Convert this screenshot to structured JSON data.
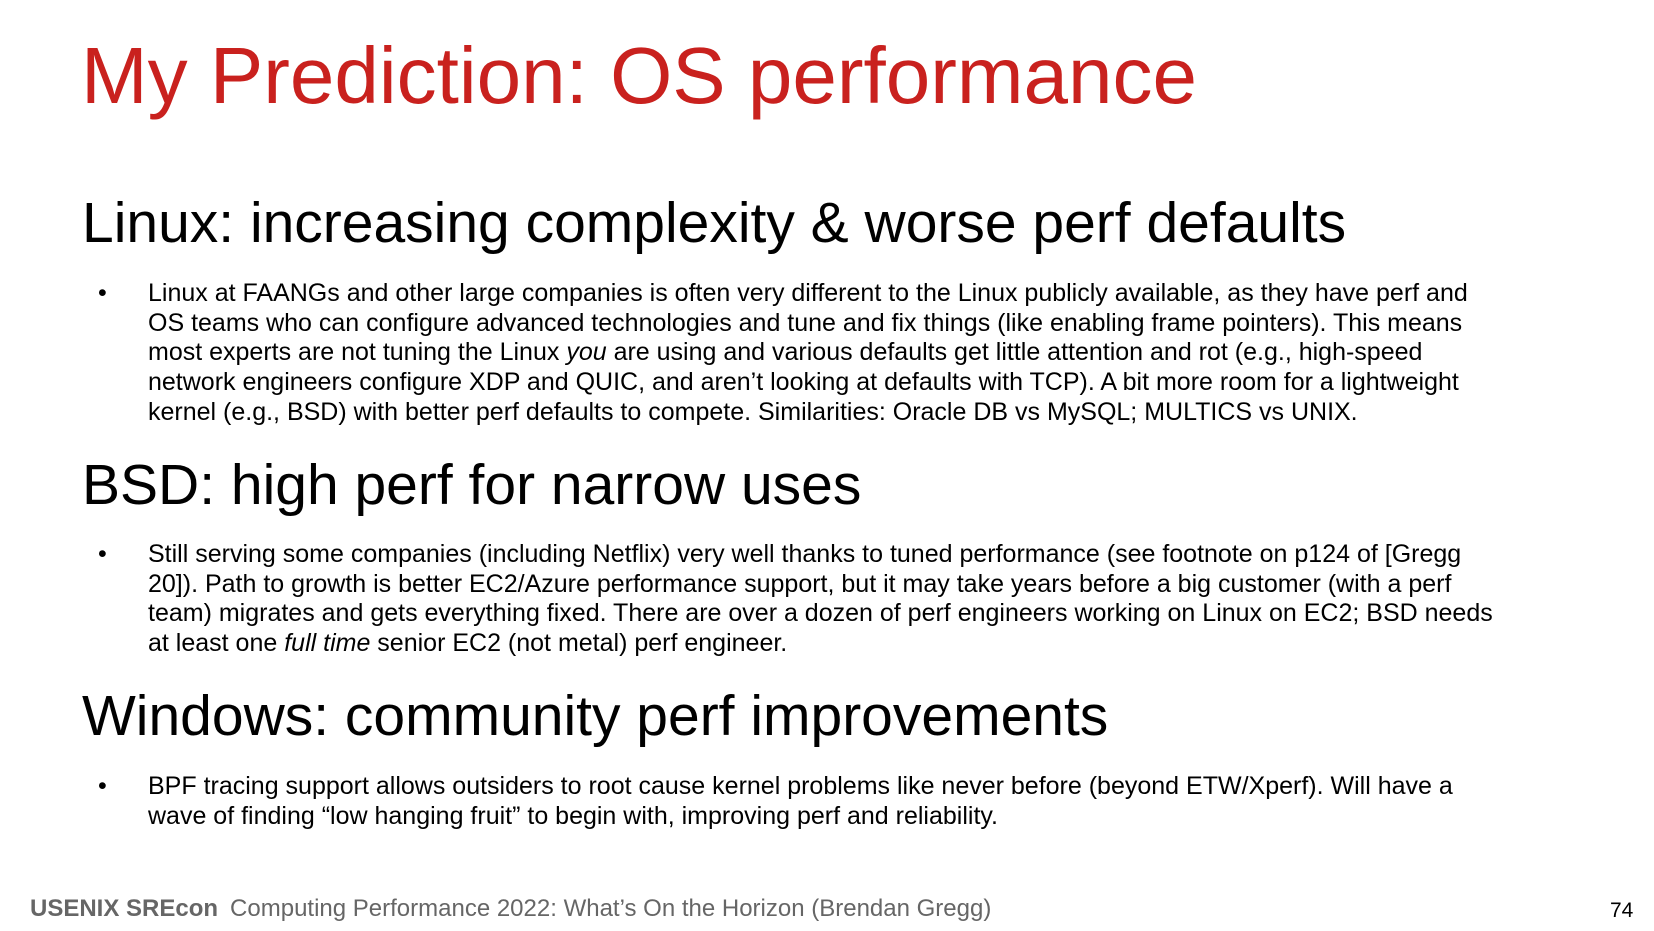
{
  "title": "My Prediction: OS performance",
  "sections": [
    {
      "heading": "Linux: increasing complexity & worse perf defaults",
      "lines": [
        [
          {
            "t": "Linux at FAANGs and other large companies is often very different to the Linux publicly available, as they have perf and"
          }
        ],
        [
          {
            "t": "OS teams who can configure advanced technologies and tune and fix things (like enabling frame pointers). This means"
          }
        ],
        [
          {
            "t": "most experts are not tuning the Linux "
          },
          {
            "t": "you",
            "i": true
          },
          {
            "t": " are using and various defaults get little attention and rot (e.g., high-speed"
          }
        ],
        [
          {
            "t": "network engineers configure XDP and QUIC, and aren’t looking at defaults with TCP). A bit more room for a lightweight"
          }
        ],
        [
          {
            "t": "kernel (e.g., BSD) with better perf defaults to compete. Similarities: Oracle DB vs MySQL; MULTICS vs UNIX."
          }
        ]
      ]
    },
    {
      "heading": "BSD: high perf for narrow uses",
      "lines": [
        [
          {
            "t": "Still serving some companies (including Netflix) very well thanks to tuned performance (see footnote on p124 of [Gregg"
          }
        ],
        [
          {
            "t": "20]). Path to growth is better EC2/Azure performance support, but it may take years before a big customer (with a perf"
          }
        ],
        [
          {
            "t": "team) migrates and gets everything fixed. There are over a dozen of perf engineers working on Linux on EC2; BSD needs"
          }
        ],
        [
          {
            "t": "at least one "
          },
          {
            "t": "full time",
            "i": true
          },
          {
            "t": " senior EC2 (not metal) perf engineer."
          }
        ]
      ]
    },
    {
      "heading": "Windows: community perf improvements",
      "lines": [
        [
          {
            "t": "BPF tracing support allows outsiders to root cause kernel problems like never before (beyond ETW/Xperf). Will have a"
          }
        ],
        [
          {
            "t": "wave of finding “low hanging fruit” to begin with, improving perf and reliability."
          }
        ]
      ]
    }
  ],
  "bullet": "•",
  "footer": {
    "brand": "USENIX SREcon",
    "talk": "Computing Performance 2022: What’s On the Horizon (Brendan Gregg)",
    "page": "74"
  },
  "colors": {
    "title": "#c9211e",
    "footer": "#666666"
  }
}
